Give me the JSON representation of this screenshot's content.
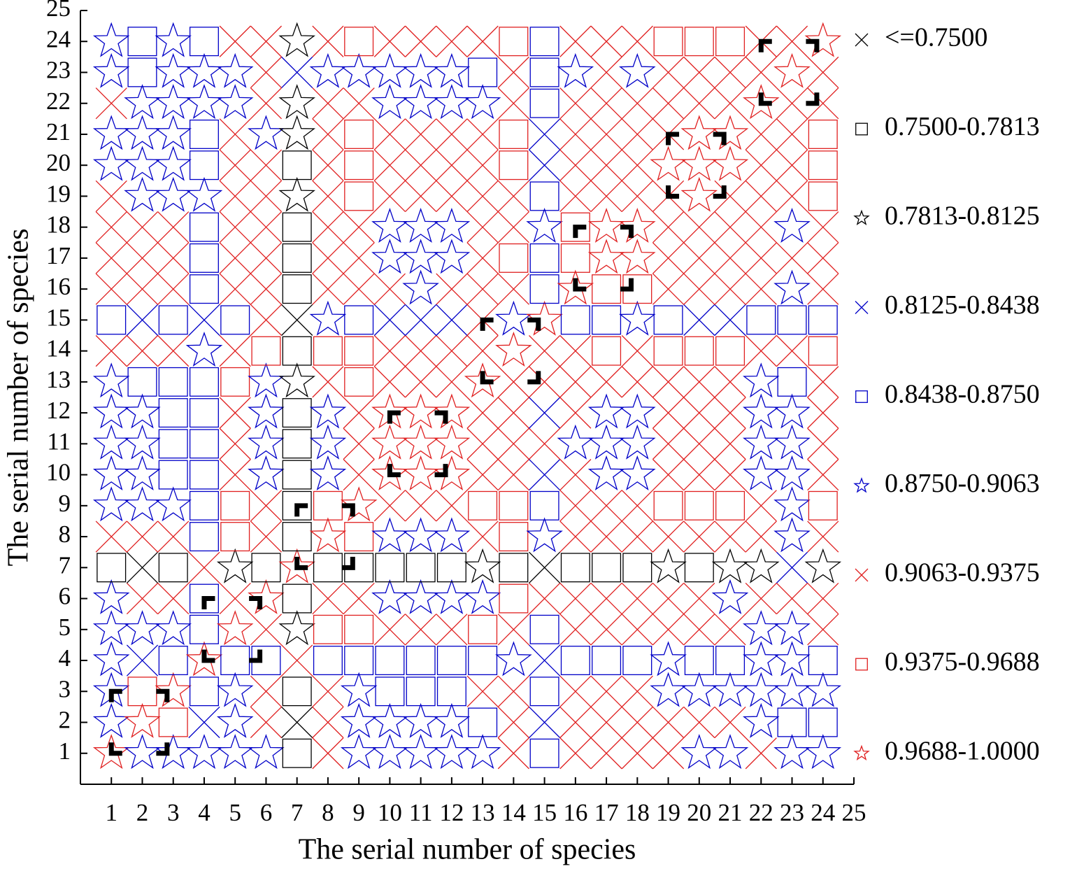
{
  "chart_data": {
    "type": "symbol-matrix",
    "xlabel": "The serial number of species",
    "ylabel": "The serial number of species",
    "xlim": [
      0,
      25
    ],
    "ylim": [
      0,
      25
    ],
    "xticks": [
      1,
      2,
      3,
      4,
      5,
      6,
      7,
      8,
      9,
      10,
      11,
      12,
      13,
      14,
      15,
      16,
      17,
      18,
      19,
      20,
      21,
      22,
      23,
      24,
      25
    ],
    "yticks": [
      1,
      2,
      3,
      4,
      5,
      6,
      7,
      8,
      9,
      10,
      11,
      12,
      13,
      14,
      15,
      16,
      17,
      18,
      19,
      20,
      21,
      22,
      23,
      24,
      25
    ],
    "legend": [
      {
        "label": "<=0.7500",
        "marker": "x",
        "color": "#000000"
      },
      {
        "label": "0.7500-0.7813",
        "marker": "square",
        "color": "#000000"
      },
      {
        "label": "0.7813-0.8125",
        "marker": "star",
        "color": "#000000"
      },
      {
        "label": "0.8125-0.8438",
        "marker": "x",
        "color": "#0000c8"
      },
      {
        "label": "0.8438-0.8750",
        "marker": "square",
        "color": "#0000c8"
      },
      {
        "label": "0.8750-0.9063",
        "marker": "star",
        "color": "#0000c8"
      },
      {
        "label": "0.9063-0.9375",
        "marker": "x",
        "color": "#e02020"
      },
      {
        "label": "0.9375-0.9688",
        "marker": "square",
        "color": "#e02020"
      },
      {
        "label": "0.9688-1.0000",
        "marker": "star",
        "color": "#e02020"
      }
    ],
    "x": [
      1,
      2,
      3,
      4,
      5,
      6,
      7,
      8,
      9,
      10,
      11,
      12,
      13,
      14,
      15,
      16,
      17,
      18,
      19,
      20,
      21,
      22,
      23,
      24
    ],
    "y": [
      1,
      2,
      3,
      4,
      5,
      6,
      7,
      8,
      9,
      10,
      11,
      12,
      13,
      14,
      15,
      16,
      17,
      18,
      19,
      20,
      21,
      22,
      23,
      24
    ],
    "z": [
      [
        8,
        5,
        5,
        5,
        5,
        5,
        1,
        6,
        5,
        5,
        5,
        5,
        5,
        6,
        4,
        6,
        6,
        6,
        6,
        5,
        5,
        6,
        5,
        5
      ],
      [
        5,
        8,
        7,
        3,
        5,
        6,
        0,
        6,
        5,
        5,
        5,
        5,
        4,
        6,
        3,
        6,
        6,
        6,
        6,
        6,
        6,
        5,
        4,
        4
      ],
      [
        5,
        7,
        8,
        4,
        5,
        6,
        1,
        6,
        5,
        4,
        4,
        4,
        6,
        6,
        4,
        6,
        6,
        6,
        5,
        5,
        5,
        5,
        5,
        5
      ],
      [
        5,
        3,
        4,
        8,
        4,
        4,
        6,
        4,
        4,
        4,
        4,
        4,
        4,
        5,
        3,
        4,
        4,
        4,
        5,
        4,
        4,
        5,
        5,
        4
      ],
      [
        5,
        5,
        5,
        4,
        8,
        6,
        2,
        7,
        7,
        6,
        6,
        6,
        7,
        6,
        4,
        6,
        6,
        6,
        6,
        6,
        6,
        5,
        5,
        6
      ],
      [
        5,
        6,
        6,
        4,
        6,
        8,
        1,
        6,
        6,
        5,
        5,
        5,
        5,
        7,
        6,
        6,
        6,
        6,
        6,
        6,
        5,
        6,
        6,
        6
      ],
      [
        1,
        0,
        1,
        6,
        2,
        1,
        8,
        1,
        1,
        1,
        1,
        1,
        2,
        1,
        0,
        1,
        1,
        1,
        2,
        1,
        2,
        2,
        3,
        2
      ],
      [
        6,
        6,
        6,
        4,
        7,
        6,
        1,
        8,
        7,
        5,
        5,
        5,
        6,
        7,
        5,
        6,
        6,
        6,
        6,
        6,
        6,
        6,
        5,
        6
      ],
      [
        5,
        5,
        5,
        4,
        7,
        6,
        1,
        7,
        8,
        6,
        6,
        6,
        7,
        7,
        4,
        6,
        6,
        6,
        7,
        7,
        7,
        6,
        5,
        7
      ],
      [
        5,
        5,
        4,
        4,
        6,
        5,
        1,
        5,
        6,
        8,
        8,
        8,
        6,
        6,
        3,
        6,
        5,
        5,
        6,
        6,
        6,
        5,
        5,
        6
      ],
      [
        5,
        5,
        4,
        4,
        6,
        5,
        1,
        5,
        6,
        8,
        8,
        8,
        6,
        6,
        6,
        5,
        5,
        5,
        6,
        6,
        6,
        5,
        5,
        6
      ],
      [
        5,
        5,
        4,
        4,
        6,
        5,
        1,
        5,
        6,
        8,
        8,
        8,
        6,
        6,
        3,
        6,
        5,
        5,
        6,
        6,
        6,
        5,
        5,
        6
      ],
      [
        5,
        4,
        4,
        4,
        7,
        5,
        2,
        6,
        7,
        6,
        6,
        6,
        8,
        6,
        6,
        6,
        6,
        6,
        6,
        6,
        6,
        5,
        4,
        6
      ],
      [
        6,
        6,
        6,
        5,
        6,
        7,
        1,
        7,
        7,
        6,
        6,
        6,
        6,
        8,
        6,
        6,
        7,
        6,
        7,
        7,
        7,
        6,
        6,
        7
      ],
      [
        4,
        3,
        4,
        3,
        4,
        6,
        0,
        5,
        4,
        3,
        3,
        3,
        6,
        5,
        8,
        4,
        4,
        5,
        4,
        3,
        3,
        4,
        4,
        4
      ],
      [
        6,
        6,
        6,
        4,
        6,
        6,
        1,
        6,
        6,
        6,
        5,
        6,
        6,
        6,
        4,
        8,
        7,
        7,
        6,
        6,
        6,
        6,
        5,
        6
      ],
      [
        6,
        6,
        6,
        4,
        6,
        6,
        1,
        6,
        6,
        5,
        5,
        5,
        6,
        7,
        4,
        7,
        8,
        8,
        6,
        6,
        6,
        6,
        6,
        6
      ],
      [
        6,
        6,
        6,
        4,
        6,
        6,
        1,
        6,
        6,
        5,
        5,
        5,
        6,
        6,
        5,
        7,
        8,
        8,
        6,
        6,
        6,
        6,
        5,
        6
      ],
      [
        6,
        5,
        5,
        5,
        6,
        6,
        2,
        6,
        7,
        6,
        6,
        6,
        6,
        6,
        4,
        6,
        6,
        6,
        6,
        8,
        6,
        6,
        6,
        7
      ],
      [
        5,
        5,
        5,
        4,
        6,
        6,
        1,
        6,
        7,
        6,
        6,
        6,
        6,
        7,
        3,
        6,
        6,
        6,
        8,
        8,
        8,
        6,
        6,
        7
      ],
      [
        5,
        5,
        5,
        4,
        6,
        5,
        2,
        6,
        7,
        6,
        6,
        6,
        6,
        7,
        3,
        6,
        6,
        6,
        6,
        8,
        8,
        6,
        6,
        7
      ],
      [
        6,
        5,
        5,
        5,
        5,
        6,
        2,
        6,
        6,
        5,
        5,
        5,
        5,
        6,
        4,
        6,
        6,
        6,
        6,
        6,
        6,
        8,
        6,
        6
      ],
      [
        5,
        4,
        5,
        5,
        5,
        6,
        3,
        5,
        5,
        5,
        5,
        5,
        4,
        6,
        4,
        5,
        6,
        5,
        6,
        6,
        6,
        6,
        8,
        6
      ],
      [
        5,
        4,
        5,
        4,
        6,
        6,
        2,
        6,
        7,
        6,
        6,
        6,
        6,
        7,
        4,
        6,
        6,
        6,
        7,
        7,
        7,
        6,
        6,
        8
      ]
    ],
    "groups": [
      [
        1,
        3
      ],
      [
        4,
        6
      ],
      [
        7,
        9
      ],
      [
        10,
        12
      ],
      [
        13,
        15
      ],
      [
        16,
        18
      ],
      [
        19,
        21
      ],
      [
        22,
        24
      ]
    ]
  }
}
